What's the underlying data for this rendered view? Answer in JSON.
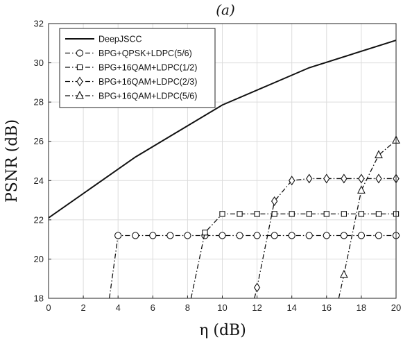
{
  "chart_data": {
    "type": "line",
    "title": "(a)",
    "xlabel": "η (dB)",
    "ylabel": "PSNR (dB)",
    "xlim": [
      0,
      20
    ],
    "ylim": [
      18,
      32
    ],
    "xticks": [
      0,
      2,
      4,
      6,
      8,
      10,
      12,
      14,
      16,
      18,
      20
    ],
    "yticks": [
      18,
      20,
      22,
      24,
      26,
      28,
      30,
      32
    ],
    "grid": true,
    "legend_position": "top-left",
    "series": [
      {
        "name": "DeepJSCC",
        "style": "solid",
        "marker": "none",
        "x": [
          0,
          5,
          10,
          15,
          20
        ],
        "y": [
          22.1,
          25.2,
          27.85,
          29.75,
          31.15
        ]
      },
      {
        "name": "BPG+QPSK+LDPC(5/6)",
        "style": "dashdot",
        "marker": "circle",
        "x": [
          3.5,
          4,
          5,
          6,
          7,
          8,
          9,
          10,
          11,
          12,
          13,
          14,
          15,
          16,
          17,
          18,
          19,
          20
        ],
        "y": [
          18,
          21.2,
          21.2,
          21.2,
          21.2,
          21.2,
          21.2,
          21.2,
          21.2,
          21.2,
          21.2,
          21.2,
          21.2,
          21.2,
          21.2,
          21.2,
          21.2,
          21.2
        ],
        "marker_from_index": 1
      },
      {
        "name": "BPG+16QAM+LDPC(1/2)",
        "style": "dashdot",
        "marker": "square",
        "x": [
          8.2,
          9,
          10,
          11,
          12,
          13,
          14,
          15,
          16,
          17,
          18,
          19,
          20
        ],
        "y": [
          18,
          21.35,
          22.3,
          22.3,
          22.3,
          22.3,
          22.3,
          22.3,
          22.3,
          22.3,
          22.3,
          22.3,
          22.3
        ],
        "marker_from_index": 1
      },
      {
        "name": "BPG+16QAM+LDPC(2/3)",
        "style": "dashdot",
        "marker": "diamond",
        "x": [
          11.85,
          12,
          13,
          14,
          15,
          16,
          17,
          18,
          19,
          20
        ],
        "y": [
          18,
          18.55,
          22.95,
          24.0,
          24.1,
          24.1,
          24.1,
          24.1,
          24.1,
          24.1
        ],
        "marker_from_index": 1
      },
      {
        "name": "BPG+16QAM+LDPC(5/6)",
        "style": "dashdot",
        "marker": "triangle",
        "x": [
          16.7,
          17,
          18,
          19,
          20
        ],
        "y": [
          18,
          19.2,
          23.5,
          25.3,
          26.05
        ],
        "marker_from_index": 1
      }
    ]
  }
}
